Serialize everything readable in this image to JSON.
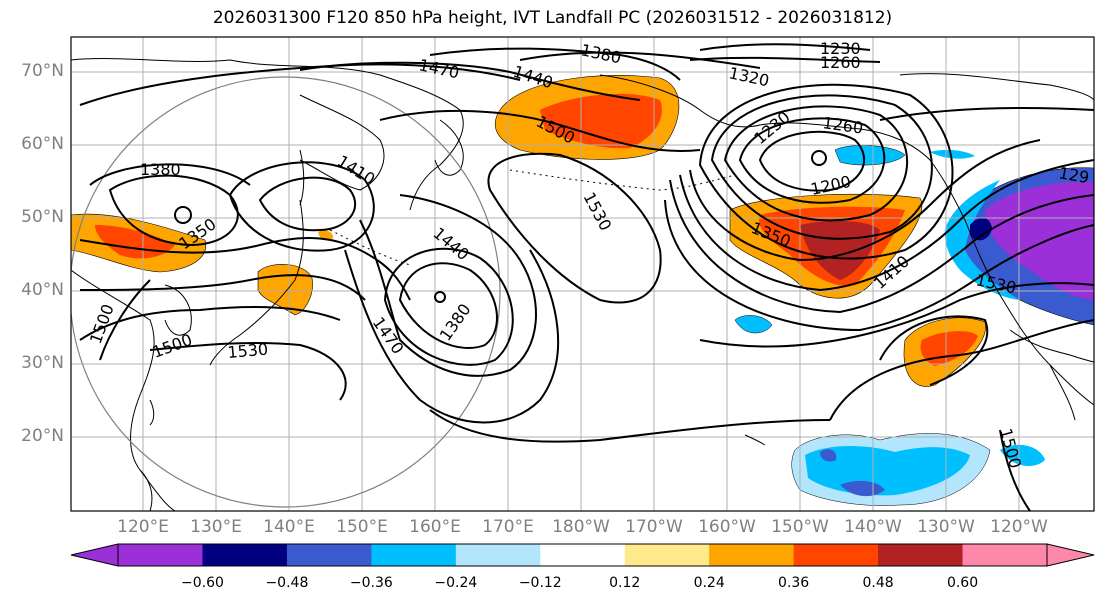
{
  "title": "2026031300 F120 850 hPa height, IVT Landfall PC (2026031512 - 2026031812)",
  "lat_labels": [
    "70°N",
    "60°N",
    "50°N",
    "40°N",
    "30°N",
    "20°N"
  ],
  "lon_labels": [
    "120°E",
    "130°E",
    "140°E",
    "150°E",
    "160°E",
    "170°E",
    "180°W",
    "170°W",
    "160°W",
    "150°W",
    "140°W",
    "130°W",
    "120°W"
  ],
  "contour_labels": {
    "c1230a": "1230",
    "c1260a": "1260",
    "c1380a": "1380",
    "c1320a": "1320",
    "c1470a": "1470",
    "c1440a": "1440",
    "c1500a": "1500",
    "c1230b": "1230",
    "c1260b": "1260",
    "c1200": "1200",
    "c1380b": "1380",
    "c1410a": "1410",
    "c1350a": "1350",
    "c1530a": "1530",
    "c1440b": "1440",
    "c1350b": "1350",
    "c1410b": "1410",
    "c1290": "129",
    "c1530b": "1530",
    "c1380c": "1380",
    "c1470b": "1470",
    "c1500b": "1500",
    "c1500c": "1500",
    "c1530c": "1530",
    "c1500d": "1500"
  },
  "colorbar": {
    "colors": [
      "#9b30d9",
      "#000080",
      "#3a5bd0",
      "#00bfff",
      "#b3e5fc",
      "#ffffff",
      "#ffe98a",
      "#ffa500",
      "#ff4500",
      "#b22222",
      "#ff88aa"
    ],
    "labels": [
      "−0.60",
      "−0.48",
      "−0.36",
      "−0.24",
      "−0.12",
      "0.12",
      "0.24",
      "0.36",
      "0.48",
      "0.60"
    ]
  }
}
